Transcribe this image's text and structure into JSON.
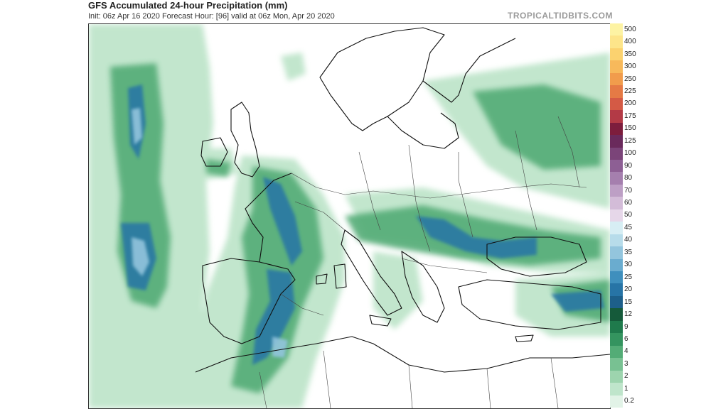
{
  "header": {
    "title": "GFS Accumulated 24-hour Precipitation (mm)",
    "subtitle": "Init: 06z Apr 16 2020   Forecast Hour: [96]   valid at 06z Mon, Apr 20 2020",
    "brand": "TROPICALTIDBITS.COM"
  },
  "colorbar": {
    "levels": [
      {
        "label": "500",
        "color": "#fdf3a3"
      },
      {
        "label": "400",
        "color": "#fde58a"
      },
      {
        "label": "350",
        "color": "#fbd26f"
      },
      {
        "label": "300",
        "color": "#f7b95b"
      },
      {
        "label": "250",
        "color": "#f19c4c"
      },
      {
        "label": "225",
        "color": "#e57a45"
      },
      {
        "label": "200",
        "color": "#d45a45"
      },
      {
        "label": "175",
        "color": "#b33a46"
      },
      {
        "label": "150",
        "color": "#7d1d3d"
      },
      {
        "label": "125",
        "color": "#6a2a5c"
      },
      {
        "label": "100",
        "color": "#7b4479"
      },
      {
        "label": "90",
        "color": "#8d5f94"
      },
      {
        "label": "80",
        "color": "#a57fae"
      },
      {
        "label": "70",
        "color": "#bd9fc5"
      },
      {
        "label": "60",
        "color": "#d3bcd8"
      },
      {
        "label": "50",
        "color": "#e6d7e9"
      },
      {
        "label": "45",
        "color": "#d7eef4"
      },
      {
        "label": "40",
        "color": "#b7dcea"
      },
      {
        "label": "35",
        "color": "#93c5dd"
      },
      {
        "label": "30",
        "color": "#6aaccf"
      },
      {
        "label": "25",
        "color": "#3f8fbd"
      },
      {
        "label": "20",
        "color": "#2774a6"
      },
      {
        "label": "15",
        "color": "#1d5f8a"
      },
      {
        "label": "12",
        "color": "#155a3a"
      },
      {
        "label": "9",
        "color": "#1f7a4c"
      },
      {
        "label": "6",
        "color": "#34945f"
      },
      {
        "label": "4",
        "color": "#53ac76"
      },
      {
        "label": "3",
        "color": "#78c192"
      },
      {
        "label": "2",
        "color": "#9dd4ae"
      },
      {
        "label": "1",
        "color": "#bfe5cb"
      },
      {
        "label": "0.2",
        "color": "#e2f3e7"
      }
    ]
  }
}
